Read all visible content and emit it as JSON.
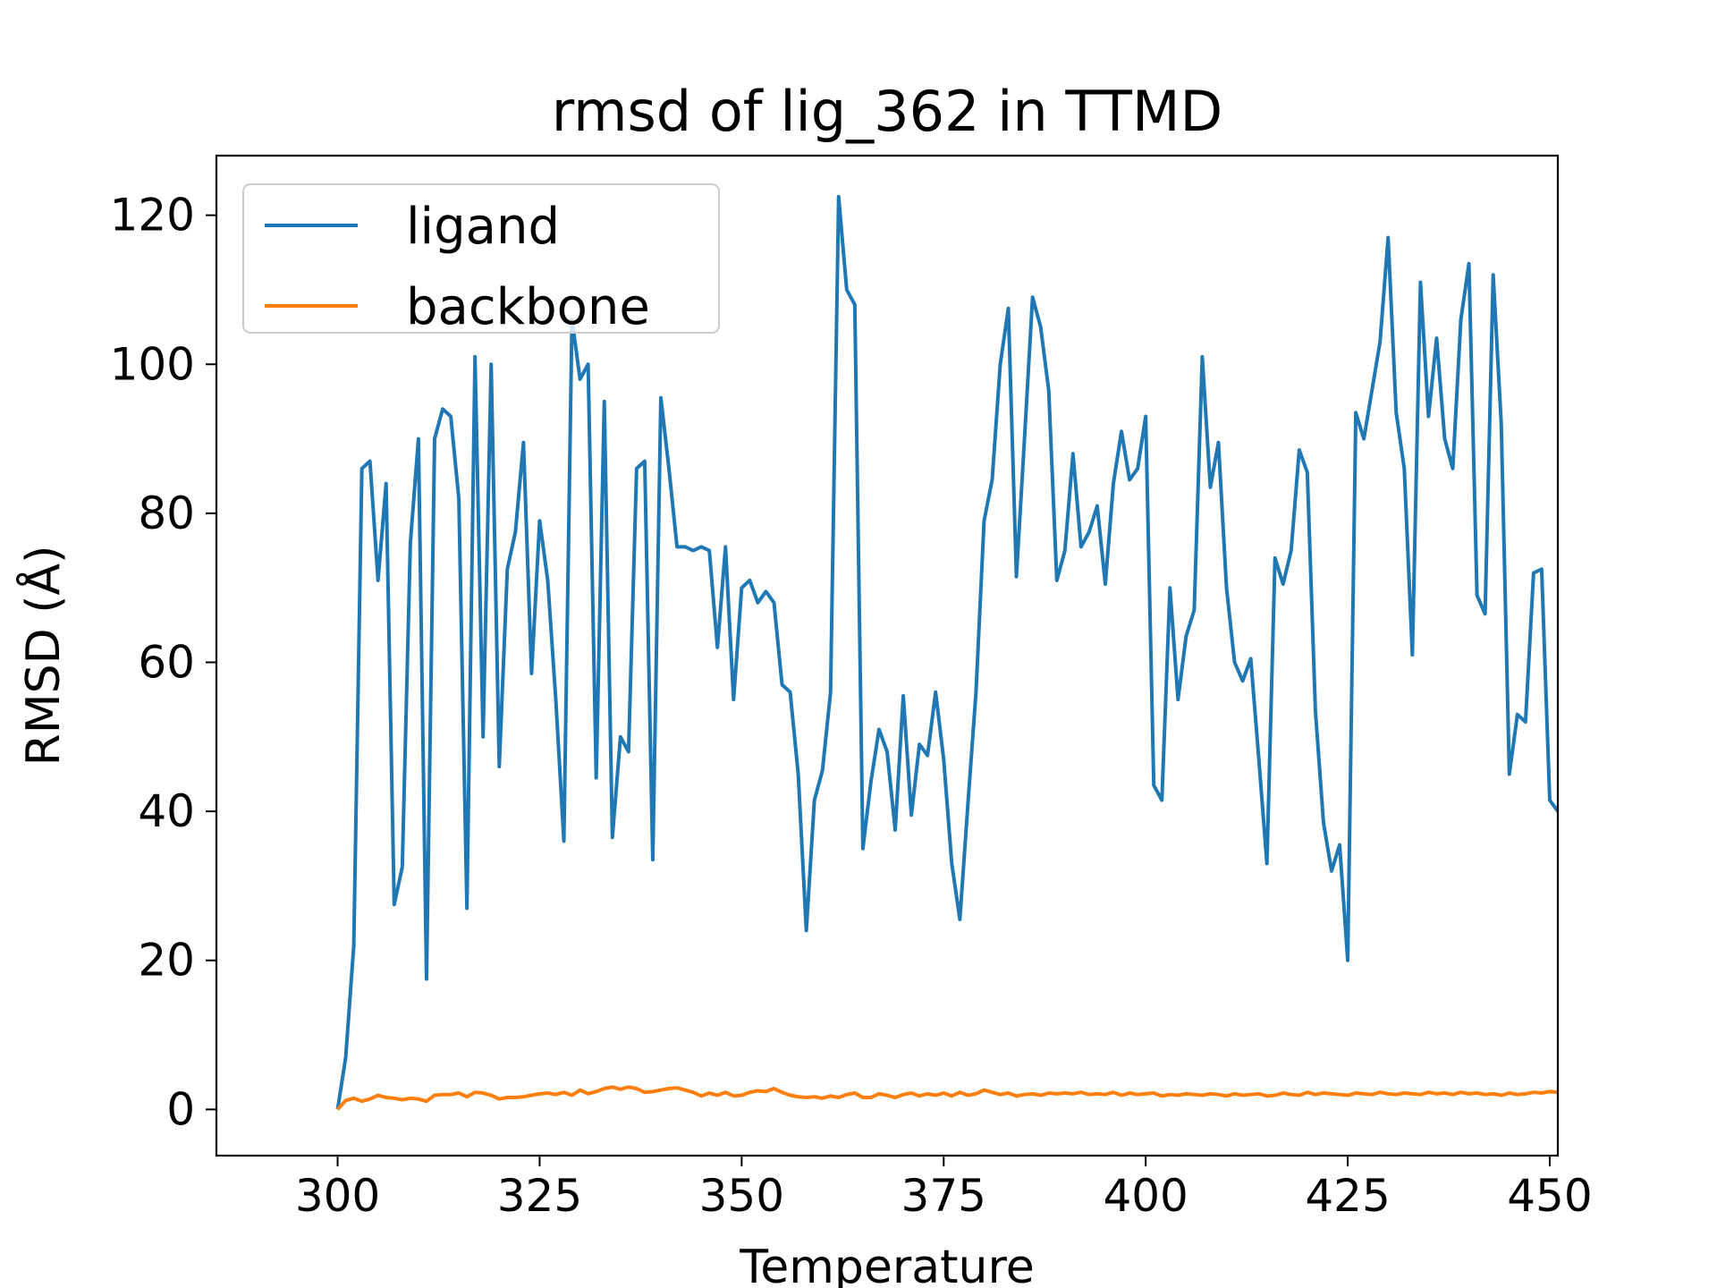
{
  "chart_data": {
    "type": "line",
    "title": "rmsd of lig_362 in TTMD",
    "xlabel": "Temperature",
    "ylabel": "RMSD (Å)",
    "xlim": [
      285,
      451
    ],
    "ylim": [
      -6.2,
      128
    ],
    "xticks": [
      300,
      325,
      350,
      375,
      400,
      425,
      450
    ],
    "yticks": [
      0,
      20,
      40,
      60,
      80,
      100,
      120
    ],
    "grid": false,
    "legend_position": "upper-left",
    "x": [
      300,
      301,
      302,
      303,
      304,
      305,
      306,
      307,
      308,
      309,
      310,
      311,
      312,
      313,
      314,
      315,
      316,
      317,
      318,
      319,
      320,
      321,
      322,
      323,
      324,
      325,
      326,
      327,
      328,
      329,
      330,
      331,
      332,
      333,
      334,
      335,
      336,
      337,
      338,
      339,
      340,
      341,
      342,
      343,
      344,
      345,
      346,
      347,
      348,
      349,
      350,
      351,
      352,
      353,
      354,
      355,
      356,
      357,
      358,
      359,
      360,
      361,
      362,
      363,
      364,
      365,
      366,
      367,
      368,
      369,
      370,
      371,
      372,
      373,
      374,
      375,
      376,
      377,
      378,
      379,
      380,
      381,
      382,
      383,
      384,
      385,
      386,
      387,
      388,
      389,
      390,
      391,
      392,
      393,
      394,
      395,
      396,
      397,
      398,
      399,
      400,
      401,
      402,
      403,
      404,
      405,
      406,
      407,
      408,
      409,
      410,
      411,
      412,
      413,
      414,
      415,
      416,
      417,
      418,
      419,
      420,
      421,
      422,
      423,
      424,
      425,
      426,
      427,
      428,
      429,
      430,
      431,
      432,
      433,
      434,
      435,
      436,
      437,
      438,
      439,
      440,
      441,
      442,
      443,
      444,
      445,
      446,
      447,
      448,
      449,
      450,
      451
    ],
    "series": [
      {
        "name": "ligand",
        "color": "#1f77b4",
        "values": [
          0,
          7,
          22,
          86,
          87,
          71,
          84,
          27.5,
          32.5,
          76,
          90,
          17.5,
          90,
          94,
          93,
          82,
          27,
          101,
          50,
          100,
          46,
          72.5,
          77.5,
          89.5,
          58.5,
          79,
          71,
          55,
          36,
          106,
          98,
          100,
          44.5,
          95,
          36.5,
          50,
          48,
          86,
          87,
          33.5,
          95.5,
          86,
          75.5,
          75.5,
          75,
          75.5,
          75,
          62,
          75.5,
          55,
          70,
          71,
          68,
          69.5,
          68,
          57,
          56,
          45,
          24,
          41.5,
          45.5,
          56,
          122.5,
          110,
          108,
          35,
          44,
          51,
          48,
          37.5,
          55.5,
          39.5,
          49,
          47.5,
          56,
          47,
          33,
          25.5,
          41,
          56,
          79,
          84.5,
          100,
          107.5,
          71.5,
          90,
          109,
          105,
          96.5,
          71,
          75,
          88,
          75.5,
          77.5,
          81,
          70.5,
          84,
          91,
          84.5,
          86,
          93,
          43.5,
          41.5,
          70,
          55,
          63.5,
          67,
          101,
          83.5,
          89.5,
          70,
          60,
          57.5,
          60.5,
          47,
          33,
          74,
          70.5,
          75,
          88.5,
          85.5,
          53.5,
          38.5,
          32,
          35.5,
          20,
          93.5,
          90,
          96.5,
          103,
          117,
          93.5,
          86,
          61,
          111,
          93,
          103.5,
          90,
          86,
          106,
          113.5,
          69,
          66.5,
          112,
          92,
          45,
          53,
          52,
          72,
          72.5,
          41.5,
          40
        ]
      },
      {
        "name": "backbone",
        "color": "#ff7f0e",
        "values": [
          0,
          1.2,
          1.5,
          1.1,
          1.4,
          1.9,
          1.6,
          1.5,
          1.3,
          1.5,
          1.4,
          1.1,
          1.9,
          2.0,
          2.0,
          2.2,
          1.7,
          2.3,
          2.2,
          1.9,
          1.4,
          1.6,
          1.6,
          1.7,
          1.9,
          2.1,
          2.2,
          2.0,
          2.3,
          1.9,
          2.6,
          2.1,
          2.4,
          2.8,
          3.0,
          2.7,
          3.0,
          2.8,
          2.3,
          2.4,
          2.6,
          2.8,
          2.9,
          2.6,
          2.3,
          1.8,
          2.2,
          1.9,
          2.3,
          1.8,
          1.9,
          2.3,
          2.5,
          2.4,
          2.8,
          2.3,
          1.9,
          1.7,
          1.6,
          1.7,
          1.5,
          1.8,
          1.6,
          2.0,
          2.2,
          1.6,
          1.6,
          2.1,
          1.9,
          1.6,
          2.0,
          2.2,
          1.8,
          2.1,
          1.9,
          2.2,
          1.8,
          2.3,
          1.9,
          2.1,
          2.6,
          2.3,
          2.0,
          2.2,
          1.8,
          2.0,
          2.1,
          1.9,
          2.2,
          2.1,
          2.2,
          2.1,
          2.3,
          2.0,
          2.1,
          2.0,
          2.3,
          1.9,
          2.2,
          2.0,
          2.1,
          2.2,
          1.8,
          2.0,
          1.9,
          2.1,
          2.0,
          1.9,
          2.1,
          2.0,
          1.8,
          2.1,
          1.9,
          2.0,
          2.1,
          1.8,
          1.9,
          2.2,
          2.0,
          1.9,
          2.3,
          2.0,
          2.2,
          2.1,
          2.0,
          1.9,
          2.2,
          2.1,
          2.0,
          2.3,
          2.1,
          2.0,
          2.2,
          2.1,
          2.0,
          2.3,
          2.1,
          2.2,
          2.0,
          2.3,
          2.1,
          2.2,
          2.0,
          2.1,
          1.9,
          2.2,
          2.0,
          2.1,
          2.3,
          2.2,
          2.4,
          2.3
        ]
      }
    ]
  }
}
